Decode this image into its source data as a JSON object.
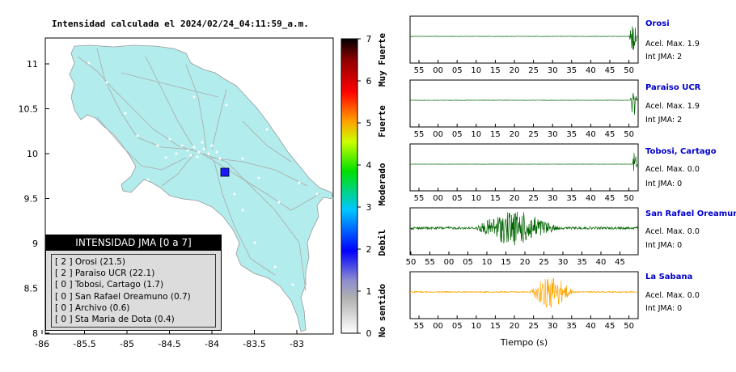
{
  "map": {
    "title": "Intensidad calculada el 2024/02/24_04:11:59_a.m.",
    "lat_ticks": [
      "11",
      "10.5",
      "10",
      "9.5",
      "9",
      "8.5",
      "8"
    ],
    "lon_ticks": [
      "-86",
      "-85.5",
      "-85",
      "-84.5",
      "-84",
      "-83.5",
      "-83"
    ],
    "epicenter_color": "#1a1aff",
    "land_color": "#b3ecec"
  },
  "colorbar": {
    "ticks": [
      "0",
      "1",
      "2",
      "3",
      "4",
      "5",
      "6",
      "7"
    ],
    "labels": [
      "No sentido",
      "Debil",
      "Moderado",
      "Fuerte",
      "Muy Fuerte"
    ]
  },
  "legend": {
    "title": "INTENSIDAD JMA [0 a 7]",
    "items": [
      "[ 2 ]  Orosi (21.5)",
      "[ 2 ]  Paraiso UCR (22.1)",
      "[ 0 ]  Tobosi, Cartago (1.7)",
      "[ 0 ]  San Rafael Oreamuno (0.7)",
      "[ 0 ]  Archivo (0.6)",
      "[ 0 ]  Sta Maria de Dota (0.4)"
    ]
  },
  "chart_data": [
    {
      "type": "line",
      "title": "Orosi",
      "accel_label": "Acel. Max. 1.9",
      "int_label": "Int JMA: 2",
      "x_ticks": [
        "55",
        "00",
        "05",
        "10",
        "15",
        "20",
        "25",
        "30",
        "35",
        "40",
        "45",
        "50"
      ],
      "color": "#006400",
      "burst": {
        "start": 0.96,
        "end": 1.0,
        "amp": 0.9
      },
      "noise_amp": 0.01
    },
    {
      "type": "line",
      "title": "Paraiso UCR",
      "accel_label": "Acel. Max. 1.9",
      "int_label": "Int JMA: 2",
      "x_ticks": [
        "55",
        "00",
        "05",
        "10",
        "15",
        "20",
        "25",
        "30",
        "35",
        "40",
        "45",
        "50"
      ],
      "color": "#006400",
      "burst": {
        "start": 0.965,
        "end": 1.0,
        "amp": 0.9
      },
      "noise_amp": 0.01
    },
    {
      "type": "line",
      "title": "Tobosi, Cartago",
      "accel_label": "Acel. Max. 0.0",
      "int_label": "Int JMA: 0",
      "x_ticks": [
        "55",
        "00",
        "05",
        "10",
        "15",
        "20",
        "25",
        "30",
        "35",
        "40",
        "45",
        "50"
      ],
      "color": "#006400",
      "burst": {
        "start": 0.975,
        "end": 1.0,
        "amp": 0.7
      },
      "noise_amp": 0.005
    },
    {
      "type": "line",
      "title": "San Rafael Oreamuno",
      "accel_label": "Acel. Max. 0.0",
      "int_label": "Int JMA: 0",
      "x_ticks": [
        "50",
        "55",
        "00",
        "05",
        "10",
        "15",
        "20",
        "25",
        "30",
        "35",
        "40",
        "45"
      ],
      "color": "#006400",
      "burst": {
        "start": 0.27,
        "end": 0.72,
        "amp": 0.85
      },
      "noise_amp": 0.06
    },
    {
      "type": "line",
      "title": "La Sabana",
      "accel_label": "Acel. Max. 0.0",
      "int_label": "Int JMA: 0",
      "x_ticks": [
        "55",
        "00",
        "05",
        "10",
        "15",
        "20",
        "25",
        "30",
        "35",
        "40",
        "45",
        "50"
      ],
      "color": "#ffa500",
      "burst": {
        "start": 0.52,
        "end": 0.75,
        "amp": 0.85
      },
      "noise_amp": 0.03
    }
  ],
  "x_axis_label": "Tiempo (s)"
}
